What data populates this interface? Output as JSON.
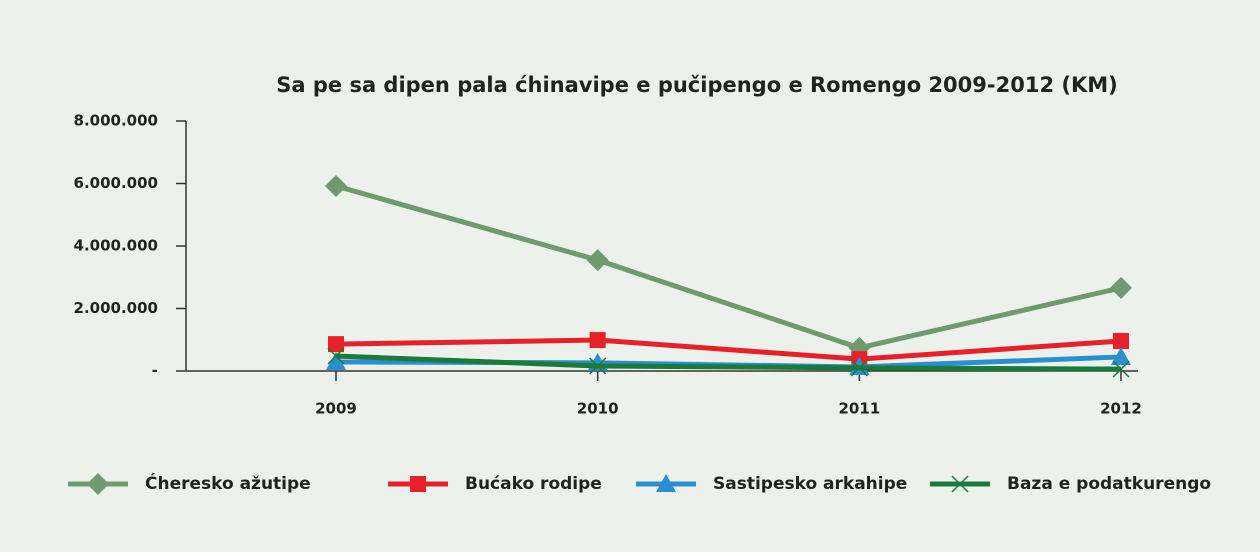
{
  "chart_data": {
    "type": "line",
    "title": "Sa pe sa dipen pala ćhinavipe e pučipengo e Romengo 2009-2012 (KM)",
    "categories": [
      "2009",
      "2010",
      "2011",
      "2012"
    ],
    "series": [
      {
        "name": "Ćheresko ažutipe",
        "color": "#6e9a6e",
        "marker": "diamond",
        "values": [
          5920000,
          3550000,
          740000,
          2660000
        ]
      },
      {
        "name": "Bućako rodipe",
        "color": "#e8202a",
        "marker": "square",
        "values": [
          860000,
          990000,
          380000,
          960000
        ]
      },
      {
        "name": "Sastipesko arkahipe",
        "color": "#2a8fd0",
        "marker": "triangle",
        "values": [
          290000,
          260000,
          130000,
          450000
        ]
      },
      {
        "name": "Baza e podatkurengo",
        "color": "#1a7a3a",
        "marker": "x",
        "values": [
          480000,
          160000,
          100000,
          60000
        ]
      }
    ],
    "ylim": [
      0,
      8000000
    ],
    "yticks": [
      {
        "value": 0,
        "label": "-"
      },
      {
        "value": 2000000,
        "label": "2.000.000"
      },
      {
        "value": 4000000,
        "label": "4.000.000"
      },
      {
        "value": 6000000,
        "label": "6.000.000"
      },
      {
        "value": 8000000,
        "label": "8.000.000"
      }
    ],
    "legend": "bottom"
  }
}
